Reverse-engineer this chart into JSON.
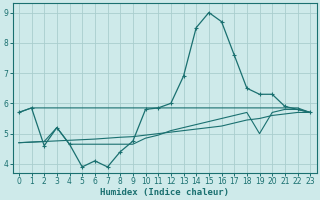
{
  "xlabel": "Humidex (Indice chaleur)",
  "xlim": [
    -0.5,
    23.5
  ],
  "ylim": [
    3.7,
    9.3
  ],
  "yticks": [
    4,
    5,
    6,
    7,
    8,
    9
  ],
  "xticks": [
    0,
    1,
    2,
    3,
    4,
    5,
    6,
    7,
    8,
    9,
    10,
    11,
    12,
    13,
    14,
    15,
    16,
    17,
    18,
    19,
    20,
    21,
    22,
    23
  ],
  "bg_color": "#ceeaea",
  "grid_color": "#aacece",
  "line_color": "#1a7070",
  "lines": [
    {
      "x": [
        0,
        1,
        2,
        3,
        4,
        5,
        6,
        7,
        8,
        9,
        10,
        11,
        12,
        13,
        14,
        15,
        16,
        17,
        18,
        19,
        20,
        21,
        22,
        23
      ],
      "y": [
        5.7,
        5.85,
        4.6,
        5.2,
        4.65,
        3.9,
        4.1,
        3.9,
        4.4,
        4.75,
        5.8,
        5.85,
        6.0,
        6.9,
        8.5,
        9.0,
        8.7,
        7.6,
        6.5,
        6.3,
        6.3,
        5.9,
        5.8,
        5.7
      ],
      "marker": true
    },
    {
      "x": [
        0,
        1,
        2,
        3,
        4,
        5,
        6,
        7,
        8,
        9,
        10,
        11,
        12,
        13,
        14,
        15,
        16,
        17,
        18,
        19,
        20,
        21,
        22,
        23
      ],
      "y": [
        5.7,
        5.85,
        5.85,
        5.85,
        5.85,
        5.85,
        5.85,
        5.85,
        5.85,
        5.85,
        5.85,
        5.85,
        5.85,
        5.85,
        5.85,
        5.85,
        5.85,
        5.85,
        5.85,
        5.85,
        5.85,
        5.85,
        5.85,
        5.7
      ],
      "marker": false
    },
    {
      "x": [
        0,
        1,
        2,
        3,
        4,
        5,
        6,
        7,
        8,
        9,
        10,
        11,
        12,
        13,
        14,
        15,
        16,
        17,
        18,
        19,
        20,
        21,
        22,
        23
      ],
      "y": [
        4.7,
        4.72,
        4.74,
        4.76,
        4.78,
        4.8,
        4.82,
        4.85,
        4.88,
        4.9,
        4.95,
        5.0,
        5.05,
        5.1,
        5.15,
        5.2,
        5.25,
        5.35,
        5.45,
        5.5,
        5.6,
        5.65,
        5.7,
        5.7
      ],
      "marker": false
    },
    {
      "x": [
        0,
        1,
        2,
        3,
        4,
        5,
        6,
        7,
        8,
        9,
        10,
        11,
        12,
        13,
        14,
        15,
        16,
        17,
        18,
        19,
        20,
        21,
        22,
        23
      ],
      "y": [
        4.7,
        4.72,
        4.74,
        5.2,
        4.65,
        4.65,
        4.65,
        4.65,
        4.65,
        4.65,
        4.85,
        4.95,
        5.1,
        5.2,
        5.3,
        5.4,
        5.5,
        5.6,
        5.7,
        5.0,
        5.7,
        5.8,
        5.8,
        5.7
      ],
      "marker": false
    }
  ]
}
